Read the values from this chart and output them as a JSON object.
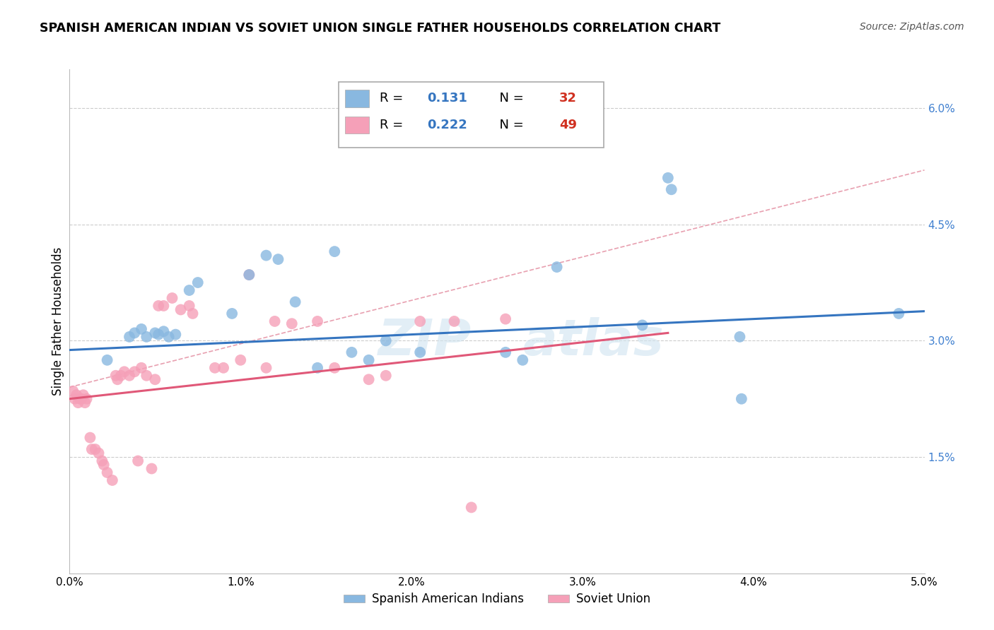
{
  "title": "SPANISH AMERICAN INDIAN VS SOVIET UNION SINGLE FATHER HOUSEHOLDS CORRELATION CHART",
  "source": "Source: ZipAtlas.com",
  "ylabel": "Single Father Households",
  "xmin": 0.0,
  "xmax": 5.0,
  "ymin": 0.0,
  "ymax": 6.5,
  "yticks": [
    0.0,
    1.5,
    3.0,
    4.5,
    6.0
  ],
  "xticks": [
    0.0,
    1.0,
    2.0,
    3.0,
    4.0,
    5.0
  ],
  "color_blue": "#89b8e0",
  "color_pink": "#f5a0b8",
  "color_blue_line": "#3575c0",
  "color_pink_line": "#e05878",
  "color_pink_dash": "#e8a0b0",
  "watermark_text": "ZIP",
  "watermark_text2": "atlas",
  "blue_scatter_x": [
    0.22,
    0.35,
    0.38,
    0.42,
    0.45,
    0.5,
    0.52,
    0.55,
    0.58,
    0.62,
    0.7,
    0.75,
    0.95,
    1.05,
    1.15,
    1.22,
    1.32,
    1.45,
    1.55,
    1.65,
    1.75,
    1.85,
    2.05,
    2.55,
    2.65,
    2.85,
    3.35,
    3.5,
    3.52,
    4.85,
    3.92,
    3.93
  ],
  "blue_scatter_y": [
    2.75,
    3.05,
    3.1,
    3.15,
    3.05,
    3.1,
    3.08,
    3.12,
    3.05,
    3.08,
    3.65,
    3.75,
    3.35,
    3.85,
    4.1,
    4.05,
    3.5,
    2.65,
    4.15,
    2.85,
    2.75,
    3.0,
    2.85,
    2.85,
    2.75,
    3.95,
    3.2,
    5.1,
    4.95,
    3.35,
    3.05,
    2.25
  ],
  "pink_scatter_x": [
    0.02,
    0.03,
    0.04,
    0.05,
    0.06,
    0.07,
    0.08,
    0.09,
    0.1,
    0.12,
    0.13,
    0.15,
    0.17,
    0.19,
    0.2,
    0.22,
    0.25,
    0.27,
    0.28,
    0.3,
    0.32,
    0.35,
    0.38,
    0.4,
    0.42,
    0.45,
    0.48,
    0.5,
    0.52,
    0.55,
    0.6,
    0.65,
    0.7,
    0.72,
    0.85,
    0.9,
    1.0,
    1.05,
    1.15,
    1.2,
    1.3,
    1.45,
    1.55,
    1.75,
    1.85,
    2.05,
    2.25,
    2.35,
    2.55
  ],
  "pink_scatter_y": [
    2.35,
    2.25,
    2.3,
    2.2,
    2.25,
    2.25,
    2.3,
    2.2,
    2.25,
    1.75,
    1.6,
    1.6,
    1.55,
    1.45,
    1.4,
    1.3,
    1.2,
    2.55,
    2.5,
    2.55,
    2.6,
    2.55,
    2.6,
    1.45,
    2.65,
    2.55,
    1.35,
    2.5,
    3.45,
    3.45,
    3.55,
    3.4,
    3.45,
    3.35,
    2.65,
    2.65,
    2.75,
    3.85,
    2.65,
    3.25,
    3.22,
    3.25,
    2.65,
    2.5,
    2.55,
    3.25,
    3.25,
    0.85,
    3.28
  ],
  "blue_line_x0": 0.0,
  "blue_line_y0": 2.88,
  "blue_line_x1": 5.0,
  "blue_line_y1": 3.38,
  "pink_line_x0": 0.0,
  "pink_line_y0": 2.25,
  "pink_line_x1": 3.5,
  "pink_line_y1": 3.1,
  "pink_dash_x0": 0.0,
  "pink_dash_y0": 2.4,
  "pink_dash_x1": 5.0,
  "pink_dash_y1": 5.2
}
